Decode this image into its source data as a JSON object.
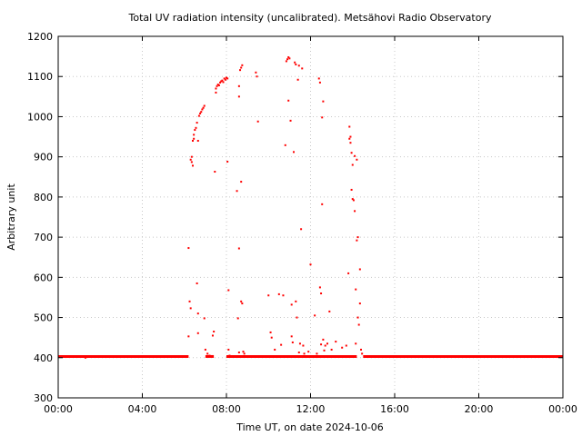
{
  "chart_data": {
    "type": "scatter",
    "title": "Total UV radiation intensity (uncalibrated). Metsähovi Radio Observatory",
    "xlabel": "Time UT, on date 2024-10-06",
    "ylabel": "Arbitrary unit",
    "xlim": [
      0,
      24
    ],
    "ylim": [
      300,
      1200
    ],
    "x_ticks": [
      0,
      4,
      8,
      12,
      16,
      20,
      24
    ],
    "x_tick_labels": [
      "00:00",
      "04:00",
      "08:00",
      "12:00",
      "16:00",
      "20:00",
      "00:00"
    ],
    "y_ticks": [
      300,
      400,
      500,
      600,
      700,
      800,
      900,
      1000,
      1100,
      1200
    ],
    "y_tick_labels": [
      "300",
      "400",
      "500",
      "600",
      "700",
      "800",
      "900",
      "1000",
      "1100",
      "1200"
    ],
    "grid": true,
    "series_color": "#ff0000",
    "baseline": {
      "value": 403,
      "x_ranges": [
        [
          0,
          6.2
        ],
        [
          7.0,
          7.4
        ],
        [
          8.0,
          14.2
        ],
        [
          14.5,
          24
        ]
      ]
    },
    "points": [
      [
        1.3,
        400
      ],
      [
        6.2,
        673
      ],
      [
        6.2,
        453
      ],
      [
        6.25,
        540
      ],
      [
        6.3,
        523
      ],
      [
        6.3,
        893
      ],
      [
        6.35,
        900
      ],
      [
        6.35,
        887
      ],
      [
        6.4,
        878
      ],
      [
        6.4,
        940
      ],
      [
        6.45,
        955
      ],
      [
        6.45,
        945
      ],
      [
        6.5,
        967
      ],
      [
        6.55,
        972
      ],
      [
        6.6,
        985
      ],
      [
        6.6,
        585
      ],
      [
        6.65,
        940
      ],
      [
        6.65,
        510
      ],
      [
        6.65,
        461
      ],
      [
        6.7,
        1002
      ],
      [
        6.75,
        1008
      ],
      [
        6.8,
        1012
      ],
      [
        6.85,
        1018
      ],
      [
        6.9,
        1022
      ],
      [
        6.95,
        1027
      ],
      [
        6.95,
        498
      ],
      [
        7.0,
        420
      ],
      [
        7.1,
        410
      ],
      [
        7.2,
        405
      ],
      [
        7.35,
        455
      ],
      [
        7.4,
        465
      ],
      [
        7.45,
        863
      ],
      [
        7.5,
        1060
      ],
      [
        7.5,
        1070
      ],
      [
        7.55,
        1076
      ],
      [
        7.6,
        1080
      ],
      [
        7.65,
        1078
      ],
      [
        7.7,
        1085
      ],
      [
        7.75,
        1088
      ],
      [
        7.8,
        1090
      ],
      [
        7.85,
        1086
      ],
      [
        7.9,
        1095
      ],
      [
        7.95,
        1092
      ],
      [
        8.0,
        1097
      ],
      [
        8.05,
        1095
      ],
      [
        8.05,
        888
      ],
      [
        8.1,
        568
      ],
      [
        8.1,
        420
      ],
      [
        8.15,
        405
      ],
      [
        8.5,
        815
      ],
      [
        8.55,
        498
      ],
      [
        8.6,
        1076
      ],
      [
        8.6,
        1050
      ],
      [
        8.6,
        672
      ],
      [
        8.6,
        413
      ],
      [
        8.65,
        1116
      ],
      [
        8.7,
        1122
      ],
      [
        8.7,
        838
      ],
      [
        8.7,
        540
      ],
      [
        8.75,
        1128
      ],
      [
        8.75,
        535
      ],
      [
        8.8,
        415
      ],
      [
        8.85,
        410
      ],
      [
        9.4,
        1110
      ],
      [
        9.45,
        1100
      ],
      [
        9.5,
        988
      ],
      [
        10.0,
        555
      ],
      [
        10.1,
        463
      ],
      [
        10.15,
        450
      ],
      [
        10.3,
        420
      ],
      [
        10.5,
        558
      ],
      [
        10.6,
        432
      ],
      [
        10.7,
        555
      ],
      [
        10.8,
        929
      ],
      [
        10.85,
        1138
      ],
      [
        10.9,
        1143
      ],
      [
        10.95,
        1148
      ],
      [
        11.0,
        1145
      ],
      [
        10.95,
        1040
      ],
      [
        11.05,
        990
      ],
      [
        11.1,
        532
      ],
      [
        11.1,
        453
      ],
      [
        11.15,
        438
      ],
      [
        11.2,
        912
      ],
      [
        11.25,
        1135
      ],
      [
        11.3,
        1130
      ],
      [
        11.3,
        540
      ],
      [
        11.35,
        500
      ],
      [
        11.4,
        1092
      ],
      [
        11.45,
        1127
      ],
      [
        11.45,
        413
      ],
      [
        11.5,
        435
      ],
      [
        11.55,
        720
      ],
      [
        11.6,
        1120
      ],
      [
        11.65,
        430
      ],
      [
        11.7,
        410
      ],
      [
        11.9,
        415
      ],
      [
        12.0,
        632
      ],
      [
        12.2,
        505
      ],
      [
        12.3,
        410
      ],
      [
        12.4,
        1095
      ],
      [
        12.45,
        1085
      ],
      [
        12.45,
        575
      ],
      [
        12.5,
        560
      ],
      [
        12.5,
        433
      ],
      [
        12.55,
        998
      ],
      [
        12.55,
        782
      ],
      [
        12.6,
        1038
      ],
      [
        12.6,
        445
      ],
      [
        12.65,
        418
      ],
      [
        12.7,
        430
      ],
      [
        12.8,
        435
      ],
      [
        12.9,
        515
      ],
      [
        13.0,
        420
      ],
      [
        13.2,
        440
      ],
      [
        13.5,
        425
      ],
      [
        13.7,
        430
      ],
      [
        13.8,
        610
      ],
      [
        13.85,
        975
      ],
      [
        13.85,
        945
      ],
      [
        13.9,
        950
      ],
      [
        13.9,
        935
      ],
      [
        13.95,
        910
      ],
      [
        13.95,
        818
      ],
      [
        14.0,
        795
      ],
      [
        14.0,
        880
      ],
      [
        14.05,
        792
      ],
      [
        14.1,
        902
      ],
      [
        14.1,
        765
      ],
      [
        14.15,
        570
      ],
      [
        14.15,
        435
      ],
      [
        14.2,
        893
      ],
      [
        14.2,
        692
      ],
      [
        14.25,
        700
      ],
      [
        14.25,
        500
      ],
      [
        14.3,
        482
      ],
      [
        14.35,
        535
      ],
      [
        14.35,
        620
      ],
      [
        14.4,
        420
      ],
      [
        14.45,
        410
      ]
    ]
  }
}
